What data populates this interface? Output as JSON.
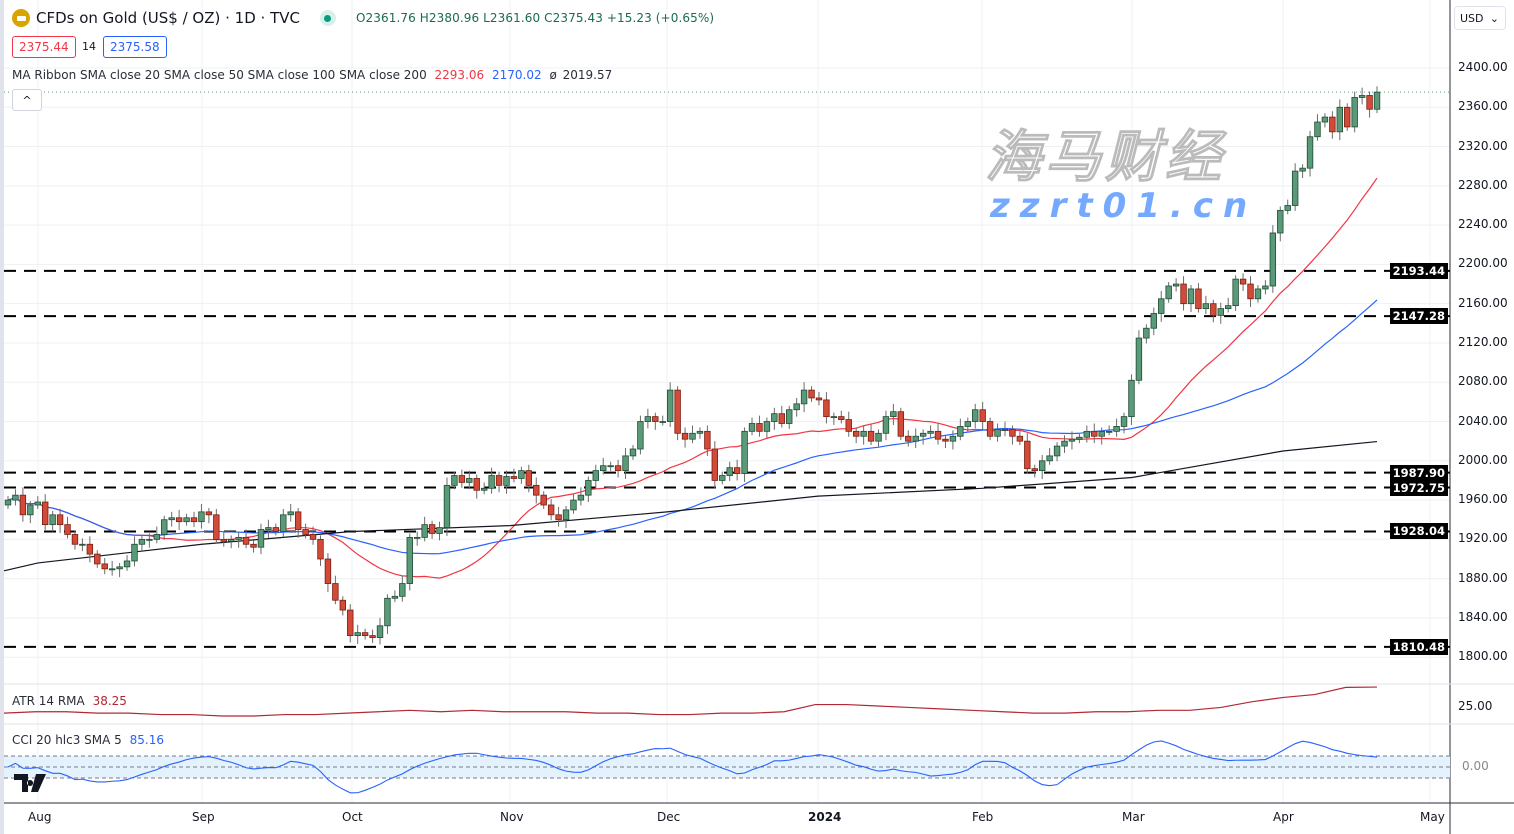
{
  "header": {
    "symbol_title": "CFDs on Gold (US$ / OZ) · 1D · TVC",
    "ohlc": "O2361.76 H2380.96 L2361.60 C2375.43 +15.23 (+0.65%)",
    "bid": "2375.44",
    "spread": "14",
    "ask": "2375.58",
    "currency": "USD"
  },
  "ma_ribbon": {
    "label": "MA Ribbon SMA close 20 SMA close 50 SMA close 100 SMA close 200",
    "v20": "2293.06",
    "v50": "2170.02",
    "v100_symbol": "ø",
    "v200": "2019.57"
  },
  "atr": {
    "label": "ATR 14 RMA",
    "value": "38.25",
    "axis_tick": "25.00"
  },
  "cci": {
    "label": "CCI 20 hlc3 SMA 5",
    "value": "85.16",
    "axis_tick": "0.00"
  },
  "watermark": {
    "cn": "海马财经",
    "domain": "zzrt01.cn"
  },
  "colors": {
    "up": "#5b9a78",
    "down": "#d24b38",
    "sma20": "#f23645",
    "sma50": "#2962ff",
    "sma200": "#131722",
    "atr": "#b22833",
    "cci": "#2962ff",
    "band": "#e3f2fd"
  },
  "chart_data": {
    "type": "candlestick",
    "symbol": "CFDs on Gold (US$ / OZ)",
    "interval": "1D",
    "ylim": [
      1790,
      2440
    ],
    "y_ticks": [
      "2400.00",
      "2360.00",
      "2320.00",
      "2280.00",
      "2240.00",
      "2200.00",
      "2160.00",
      "2120.00",
      "2080.00",
      "2040.00",
      "2000.00",
      "1960.00",
      "1920.00",
      "1880.00",
      "1840.00",
      "1800.00"
    ],
    "x_ticks": [
      "Aug",
      "Sep",
      "Oct",
      "Nov",
      "Dec",
      "2024",
      "Feb",
      "Mar",
      "Apr",
      "May"
    ],
    "grid": true,
    "last_price": 2375.43,
    "horizontal_levels": [
      2193.44,
      2147.28,
      1987.9,
      1972.75,
      1928.04,
      1810.48
    ],
    "closes": [
      1960,
      1965,
      1945,
      1955,
      1958,
      1935,
      1945,
      1935,
      1925,
      1915,
      1915,
      1905,
      1895,
      1890,
      1890,
      1892,
      1898,
      1915,
      1920,
      1920,
      1925,
      1940,
      1942,
      1938,
      1942,
      1938,
      1948,
      1945,
      1920,
      1918,
      1920,
      1922,
      1915,
      1912,
      1930,
      1932,
      1928,
      1945,
      1948,
      1930,
      1925,
      1920,
      1900,
      1875,
      1858,
      1848,
      1822,
      1825,
      1822,
      1820,
      1832,
      1860,
      1862,
      1875,
      1922,
      1922,
      1935,
      1926,
      1932,
      1975,
      1985,
      1978,
      1982,
      1970,
      1972,
      1985,
      1975,
      1984,
      1982,
      1990,
      1975,
      1965,
      1955,
      1945,
      1940,
      1950,
      1960,
      1965,
      1980,
      1990,
      1995,
      1995,
      1990,
      2005,
      2012,
      2040,
      2045,
      2040,
      2040,
      2072,
      2028,
      2022,
      2028,
      2030,
      2012,
      1980,
      1985,
      1993,
      1987,
      2030,
      2038,
      2030,
      2040,
      2048,
      2038,
      2052,
      2058,
      2072,
      2064,
      2062,
      2045,
      2045,
      2042,
      2030,
      2025,
      2030,
      2020,
      2028,
      2045,
      2050,
      2025,
      2020,
      2025,
      2028,
      2030,
      2022,
      2020,
      2025,
      2035,
      2040,
      2052,
      2040,
      2025,
      2032,
      2032,
      2025,
      2020,
      1992,
      1990,
      2000,
      2005,
      2015,
      2020,
      2022,
      2024,
      2030,
      2025,
      2030,
      2030,
      2035,
      2045,
      2082,
      2125,
      2135,
      2150,
      2165,
      2178,
      2180,
      2160,
      2175,
      2155,
      2160,
      2148,
      2155,
      2158,
      2185,
      2180,
      2165,
      2175,
      2178,
      2232,
      2255,
      2260,
      2295,
      2298,
      2330,
      2345,
      2350,
      2335,
      2360,
      2340,
      2370,
      2372,
      2358,
      2375.43
    ],
    "sma200_by_month": {
      "Aug": 1896,
      "Sep": 1915,
      "Oct": 1928,
      "Nov": 1934,
      "Dec": 1948,
      "2024": 1964,
      "Feb": 1972,
      "Mar": 1983,
      "Apr": 2010
    },
    "sma200_last": 2019.57,
    "atr_series": [
      20,
      21,
      21,
      20,
      20,
      19,
      19,
      18,
      18,
      19,
      19,
      20,
      21,
      22,
      21,
      22,
      21,
      21,
      21,
      20,
      20,
      19,
      19,
      20,
      20,
      21,
      26,
      26,
      25,
      24,
      23,
      22,
      21,
      20,
      20,
      21,
      21,
      22,
      22,
      24,
      28,
      31,
      33,
      38,
      38.25
    ],
    "cci_band": [
      -100,
      100
    ]
  }
}
